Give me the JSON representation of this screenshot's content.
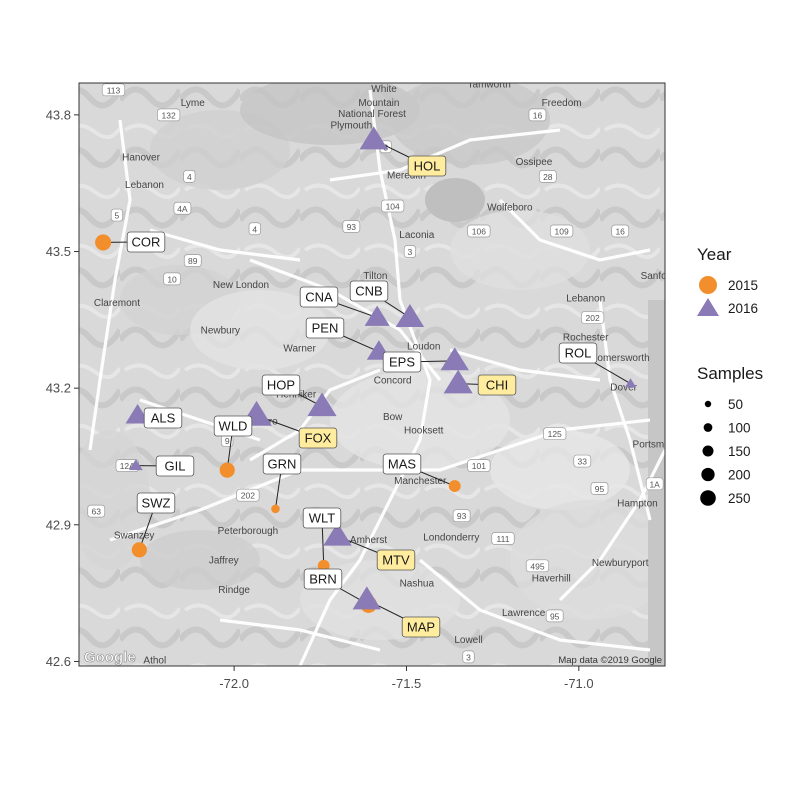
{
  "chart_data": {
    "type": "scatter",
    "title": "",
    "xlabel": "",
    "ylabel": "",
    "xlim": [
      -72.45,
      -70.75
    ],
    "ylim": [
      42.59,
      43.87
    ],
    "x_ticks": [
      -72.0,
      -71.5,
      -71.0
    ],
    "x_tick_labels": [
      "-72.0",
      "-71.5",
      "-71.0"
    ],
    "y_ticks": [
      42.6,
      42.9,
      43.2,
      43.5,
      43.8
    ],
    "y_tick_labels": [
      "42.6",
      "42.9",
      "43.2",
      "43.5",
      "43.8"
    ],
    "grid": false,
    "legend_placement": "right",
    "colors": {
      "y2015": "#F28E2B",
      "y2016": "#8A7AB5",
      "highlight_label": "#FFEC9E"
    },
    "legend": {
      "year_title": "Year",
      "year_items": [
        {
          "label": "2015",
          "shape": "circle",
          "color": "#F28E2B"
        },
        {
          "label": "2016",
          "shape": "triangle",
          "color": "#8A7AB5"
        }
      ],
      "size_title": "Samples",
      "size_items": [
        "50",
        "100",
        "150",
        "200",
        "250"
      ]
    },
    "sites": [
      {
        "code": "HOL",
        "lon": -71.595,
        "lat": 43.745,
        "year": "2016",
        "samples": 150,
        "highlight": true
      },
      {
        "code": "COR",
        "lon": -72.38,
        "lat": 43.52,
        "year": "2015",
        "samples": 70,
        "highlight": false
      },
      {
        "code": "CNA",
        "lon": -71.585,
        "lat": 43.355,
        "year": "2016",
        "samples": 110,
        "highlight": false
      },
      {
        "code": "CNB",
        "lon": -71.49,
        "lat": 43.355,
        "year": "2016",
        "samples": 150,
        "highlight": false
      },
      {
        "code": "PEN",
        "lon": -71.58,
        "lat": 43.28,
        "year": "2016",
        "samples": 100,
        "highlight": false
      },
      {
        "code": "EPS",
        "lon": -71.36,
        "lat": 43.26,
        "year": "2016",
        "samples": 150,
        "highlight": false
      },
      {
        "code": "CHI",
        "lon": -71.35,
        "lat": 43.21,
        "year": "2016",
        "samples": 160,
        "highlight": true
      },
      {
        "code": "ROL",
        "lon": -70.85,
        "lat": 43.21,
        "year": "2016",
        "samples": 10,
        "highlight": false
      },
      {
        "code": "HOP",
        "lon": -71.745,
        "lat": 43.16,
        "year": "2016",
        "samples": 160,
        "highlight": false
      },
      {
        "code": "FOX",
        "lon": -71.935,
        "lat": 43.14,
        "year": "2016",
        "samples": 180,
        "highlight": true
      },
      {
        "code": "ALS",
        "lon": -72.28,
        "lat": 43.14,
        "year": "2016",
        "samples": 100,
        "highlight": false
      },
      {
        "code": "WLD",
        "lon": -72.02,
        "lat": 43.02,
        "year": "2015",
        "samples": 60,
        "highlight": false
      },
      {
        "code": "GRN",
        "lon": -71.88,
        "lat": 42.935,
        "year": "2015",
        "samples": 10,
        "highlight": false
      },
      {
        "code": "GIL",
        "lon": -72.285,
        "lat": 43.03,
        "year": "2016",
        "samples": 20,
        "highlight": false
      },
      {
        "code": "MAS",
        "lon": -71.36,
        "lat": 42.985,
        "year": "2015",
        "samples": 30,
        "highlight": false
      },
      {
        "code": "SWZ",
        "lon": -72.275,
        "lat": 42.845,
        "year": "2015",
        "samples": 60,
        "highlight": false
      },
      {
        "code": "WLT",
        "lon": -71.74,
        "lat": 42.81,
        "year": "2015",
        "samples": 30,
        "highlight": false
      },
      {
        "code": "MTV",
        "lon": -71.7,
        "lat": 42.875,
        "year": "2016",
        "samples": 150,
        "highlight": true
      },
      {
        "code": "BRN",
        "lon": -71.61,
        "lat": 42.725,
        "year": "2015",
        "samples": 80,
        "highlight": false
      },
      {
        "code": "MAP",
        "lon": -71.615,
        "lat": 42.735,
        "year": "2016",
        "samples": 150,
        "highlight": true
      }
    ]
  },
  "basemap": {
    "attribution": "Map data ©2019 Google",
    "logo": "Google",
    "place_labels": [
      {
        "text": "White",
        "lon": -71.565,
        "lat": 43.85
      },
      {
        "text": "Mountain",
        "lon": -71.58,
        "lat": 43.82
      },
      {
        "text": "National Forest",
        "lon": -71.6,
        "lat": 43.795
      },
      {
        "text": "Plymouth",
        "lon": -71.66,
        "lat": 43.77
      },
      {
        "text": "Tamworth",
        "lon": -71.26,
        "lat": 43.86
      },
      {
        "text": "Freedom",
        "lon": -71.05,
        "lat": 43.82
      },
      {
        "text": "Lyme",
        "lon": -72.12,
        "lat": 43.82
      },
      {
        "text": "Hanover",
        "lon": -72.27,
        "lat": 43.7
      },
      {
        "text": "Lebanon",
        "lon": -72.26,
        "lat": 43.64
      },
      {
        "text": "Meredith",
        "lon": -71.5,
        "lat": 43.66
      },
      {
        "text": "Ossipee",
        "lon": -71.13,
        "lat": 43.69
      },
      {
        "text": "Wolfeboro",
        "lon": -71.2,
        "lat": 43.59
      },
      {
        "text": "Laconia",
        "lon": -71.47,
        "lat": 43.53
      },
      {
        "text": "New London",
        "lon": -71.98,
        "lat": 43.42
      },
      {
        "text": "Tilton",
        "lon": -71.59,
        "lat": 43.44
      },
      {
        "text": "Sanford",
        "lon": -70.77,
        "lat": 43.44
      },
      {
        "text": "Lebanon",
        "lon": -70.98,
        "lat": 43.39
      },
      {
        "text": "Claremont",
        "lon": -72.34,
        "lat": 43.38
      },
      {
        "text": "Newbury",
        "lon": -72.04,
        "lat": 43.32
      },
      {
        "text": "Rochester",
        "lon": -70.98,
        "lat": 43.305
      },
      {
        "text": "Somersworth",
        "lon": -70.88,
        "lat": 43.26
      },
      {
        "text": "Loudon",
        "lon": -71.45,
        "lat": 43.285
      },
      {
        "text": "Warner",
        "lon": -71.81,
        "lat": 43.28
      },
      {
        "text": "Concord",
        "lon": -71.54,
        "lat": 43.21
      },
      {
        "text": "Dover",
        "lon": -70.87,
        "lat": 43.195
      },
      {
        "text": "Henniker",
        "lon": -71.82,
        "lat": 43.18
      },
      {
        "text": "Hillsboro",
        "lon": -71.93,
        "lat": 43.12
      },
      {
        "text": "Bow",
        "lon": -71.54,
        "lat": 43.13
      },
      {
        "text": "Hooksett",
        "lon": -71.45,
        "lat": 43.1
      },
      {
        "text": "Portsmouth",
        "lon": -70.77,
        "lat": 43.07
      },
      {
        "text": "Manchester",
        "lon": -71.46,
        "lat": 42.99
      },
      {
        "text": "Hampton",
        "lon": -70.83,
        "lat": 42.94
      },
      {
        "text": "Peterborough",
        "lon": -71.96,
        "lat": 42.88
      },
      {
        "text": "Amherst",
        "lon": -71.61,
        "lat": 42.86
      },
      {
        "text": "Londonderry",
        "lon": -71.37,
        "lat": 42.865
      },
      {
        "text": "Jaffrey",
        "lon": -72.03,
        "lat": 42.815
      },
      {
        "text": "Newburyport",
        "lon": -70.88,
        "lat": 42.81
      },
      {
        "text": "Nashua",
        "lon": -71.47,
        "lat": 42.765
      },
      {
        "text": "Haverhill",
        "lon": -71.08,
        "lat": 42.775
      },
      {
        "text": "Rindge",
        "lon": -72.0,
        "lat": 42.75
      },
      {
        "text": "Swanzey",
        "lon": -72.29,
        "lat": 42.87
      },
      {
        "text": "Lawrence",
        "lon": -71.16,
        "lat": 42.7
      },
      {
        "text": "Lowell",
        "lon": -71.32,
        "lat": 42.64
      },
      {
        "text": "Athol",
        "lon": -72.23,
        "lat": 42.595
      }
    ],
    "route_shields": [
      {
        "text": "113",
        "lon": -72.35,
        "lat": 43.855
      },
      {
        "text": "132",
        "lon": -72.19,
        "lat": 43.8
      },
      {
        "text": "3",
        "lon": -71.56,
        "lat": 43.73
      },
      {
        "text": "16",
        "lon": -71.12,
        "lat": 43.8
      },
      {
        "text": "4",
        "lon": -72.13,
        "lat": 43.665
      },
      {
        "text": "104",
        "lon": -71.54,
        "lat": 43.6
      },
      {
        "text": "28",
        "lon": -71.09,
        "lat": 43.665
      },
      {
        "text": "5",
        "lon": -72.34,
        "lat": 43.58
      },
      {
        "text": "4A",
        "lon": -72.15,
        "lat": 43.595
      },
      {
        "text": "4",
        "lon": -71.94,
        "lat": 43.55
      },
      {
        "text": "93",
        "lon": -71.66,
        "lat": 43.555
      },
      {
        "text": "3",
        "lon": -71.49,
        "lat": 43.5
      },
      {
        "text": "106",
        "lon": -71.29,
        "lat": 43.545
      },
      {
        "text": "109",
        "lon": -71.05,
        "lat": 43.545
      },
      {
        "text": "16",
        "lon": -70.88,
        "lat": 43.545
      },
      {
        "text": "89",
        "lon": -72.12,
        "lat": 43.48
      },
      {
        "text": "10",
        "lon": -72.18,
        "lat": 43.44
      },
      {
        "text": "202",
        "lon": -70.96,
        "lat": 43.355
      },
      {
        "text": "125",
        "lon": -71.07,
        "lat": 43.1
      },
      {
        "text": "9",
        "lon": -72.02,
        "lat": 43.085
      },
      {
        "text": "12A",
        "lon": -72.31,
        "lat": 43.03
      },
      {
        "text": "101",
        "lon": -71.29,
        "lat": 43.03
      },
      {
        "text": "33",
        "lon": -70.99,
        "lat": 43.04
      },
      {
        "text": "202",
        "lon": -71.96,
        "lat": 42.965
      },
      {
        "text": "95",
        "lon": -70.94,
        "lat": 42.98
      },
      {
        "text": "1A",
        "lon": -70.78,
        "lat": 42.99
      },
      {
        "text": "63",
        "lon": -72.4,
        "lat": 42.93
      },
      {
        "text": "93",
        "lon": -71.34,
        "lat": 42.92
      },
      {
        "text": "111",
        "lon": -71.22,
        "lat": 42.87
      },
      {
        "text": "495",
        "lon": -71.12,
        "lat": 42.81
      },
      {
        "text": "95",
        "lon": -71.07,
        "lat": 42.7
      },
      {
        "text": "3",
        "lon": -71.32,
        "lat": 42.61
      }
    ]
  }
}
